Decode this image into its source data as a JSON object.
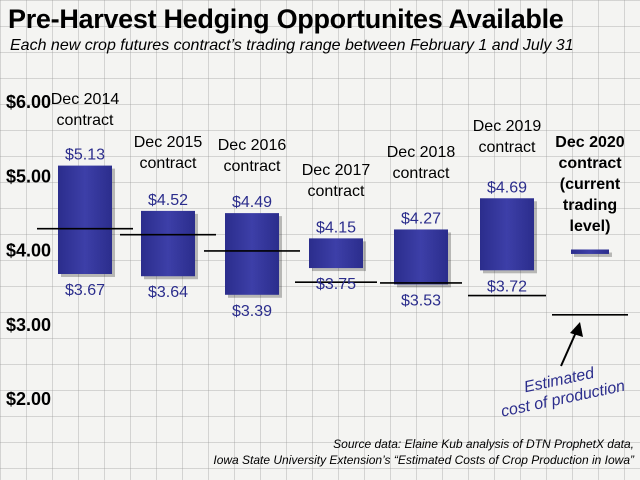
{
  "title": "Pre-Harvest Hedging Opportunites Available",
  "subtitle": "Each new crop futures contract’s trading range between February 1 and July 31",
  "source": {
    "line1": "Source data: Elaine Kub analysis of DTN ProphetX data,",
    "line2": "Iowa State University Extension’s “Estimated Costs of Crop Production in Iowa”"
  },
  "colors": {
    "bar": "#2b2d8c",
    "bar_light": "#4d4fb8",
    "value_label": "#2b2d8c",
    "line": "#000000"
  },
  "chart_data": {
    "type": "bar",
    "subtype": "floating-range",
    "ylim": [
      2.0,
      6.0
    ],
    "yticks": [
      {
        "value": 6.0,
        "label": "$6.00"
      },
      {
        "value": 5.0,
        "label": "$5.00"
      },
      {
        "value": 4.0,
        "label": "$4.00"
      },
      {
        "value": 3.0,
        "label": "$3.00"
      },
      {
        "value": 2.0,
        "label": "$2.00"
      }
    ],
    "grid": true,
    "categories": [
      {
        "label": [
          "Dec 2014",
          "contract"
        ],
        "high": 5.13,
        "low": 3.67,
        "high_label": "$5.13",
        "low_label": "$3.67",
        "cost": 4.28
      },
      {
        "label": [
          "Dec 2015",
          "contract"
        ],
        "high": 4.52,
        "low": 3.64,
        "high_label": "$4.52",
        "low_label": "$3.64",
        "cost": 4.2
      },
      {
        "label": [
          "Dec 2016",
          "contract"
        ],
        "high": 4.49,
        "low": 3.39,
        "high_label": "$4.49",
        "low_label": "$3.39",
        "cost": 3.98
      },
      {
        "label": [
          "Dec 2017",
          "contract"
        ],
        "high": 4.15,
        "low": 3.75,
        "high_label": "$4.15",
        "low_label": "$3.75",
        "cost": 3.56
      },
      {
        "label": [
          "Dec 2018",
          "contract"
        ],
        "high": 4.27,
        "low": 3.53,
        "high_label": "$4.27",
        "low_label": "$3.53",
        "cost": 3.55
      },
      {
        "label": [
          "Dec 2019",
          "contract"
        ],
        "high": 4.69,
        "low": 3.72,
        "high_label": "$4.69",
        "low_label": "$3.72",
        "cost": 3.38
      },
      {
        "label": [
          "Dec 2020",
          "contract",
          "(current",
          "trading",
          "level)"
        ],
        "high": 4.0,
        "low": 3.94,
        "high_label": "",
        "low_label": "",
        "cost": 3.12,
        "bold": true
      }
    ],
    "annotation": {
      "text": [
        "Estimated",
        "cost of production"
      ]
    }
  }
}
